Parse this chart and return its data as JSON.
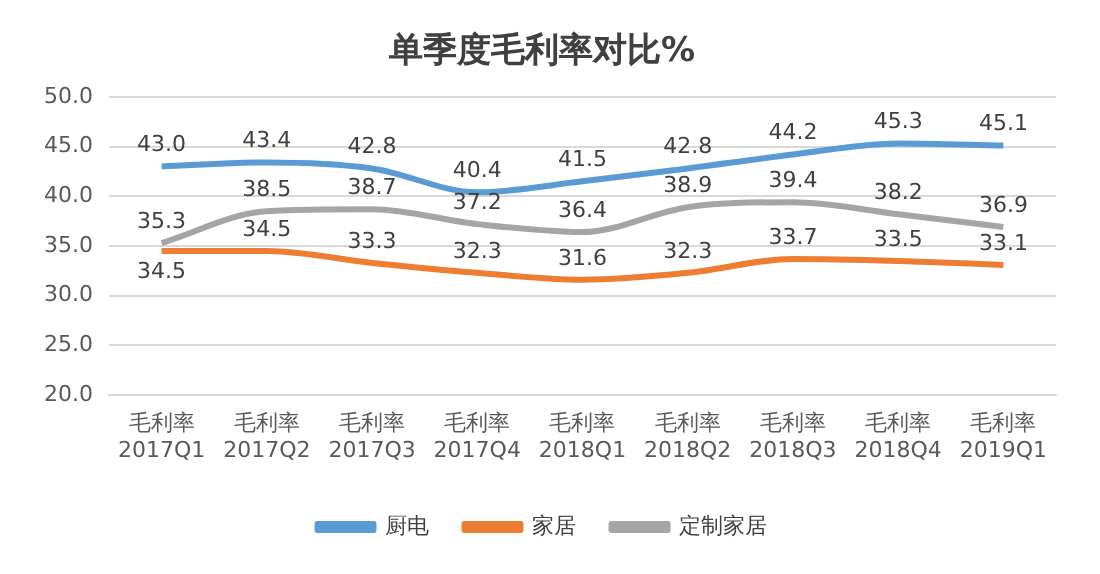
{
  "chart_data": {
    "type": "line",
    "title": "单季度毛利率对比%",
    "categories": [
      "毛利率\n2017Q1",
      "毛利率\n2017Q2",
      "毛利率\n2017Q3",
      "毛利率\n2017Q4",
      "毛利率\n2018Q1",
      "毛利率\n2018Q2",
      "毛利率\n2018Q3",
      "毛利率\n2018Q4",
      "毛利率\n2019Q1"
    ],
    "series": [
      {
        "name": "厨电",
        "color": "#5b9bd5",
        "values": [
          43.0,
          43.4,
          42.8,
          40.4,
          41.5,
          42.8,
          44.2,
          45.3,
          45.1
        ],
        "value_labels": [
          "43.0",
          "43.4",
          "42.8",
          "40.4",
          "41.5",
          "42.8",
          "44.2",
          "45.3",
          "45.1"
        ]
      },
      {
        "name": "家居",
        "color": "#ed7d31",
        "values": [
          34.5,
          34.5,
          33.3,
          32.3,
          31.6,
          32.3,
          33.7,
          33.5,
          33.1
        ],
        "value_labels": [
          "34.5",
          "34.5",
          "33.3",
          "32.3",
          "31.6",
          "32.3",
          "33.7",
          "33.5",
          "33.1"
        ]
      },
      {
        "name": "定制家居",
        "color": "#a5a5a5",
        "values": [
          35.3,
          38.5,
          38.7,
          37.2,
          36.4,
          38.9,
          39.4,
          38.2,
          36.9
        ],
        "value_labels": [
          "35.3",
          "38.5",
          "38.7",
          "37.2",
          "36.4",
          "38.9",
          "39.4",
          "38.2",
          "36.9"
        ]
      }
    ],
    "ylim": [
      20,
      50
    ],
    "yticks": [
      {
        "value": 20,
        "label": "20.0"
      },
      {
        "value": 25,
        "label": "25.0"
      },
      {
        "value": 30,
        "label": "30.0"
      },
      {
        "value": 35,
        "label": "35.0"
      },
      {
        "value": 40,
        "label": "40.0"
      },
      {
        "value": 45,
        "label": "45.0"
      },
      {
        "value": 50,
        "label": "50.0"
      }
    ],
    "grid": "y",
    "legend": "bottom",
    "marker": "none",
    "line_style": "solid"
  }
}
